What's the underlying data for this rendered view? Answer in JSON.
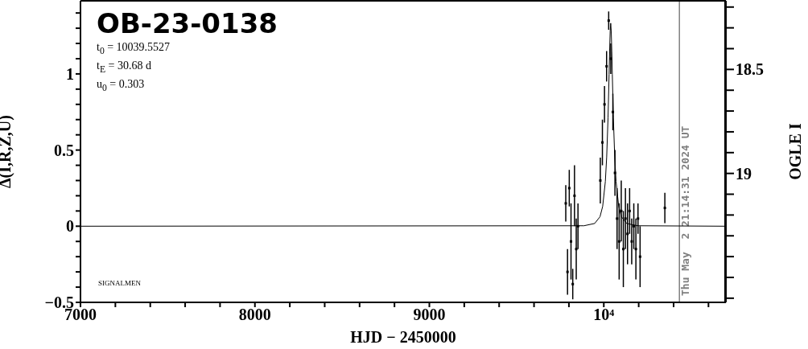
{
  "chart_data": {
    "type": "scatter",
    "xlabel": "HJD − 2450000",
    "ylabel": "Δ(I,R,Z,U)",
    "y2label": "OGLE I",
    "annotations": [
      "OB-23-0138",
      "t$_{0}$ = 10039.5527",
      "t$_{E}$ = 30.68 d",
      "u$_{0}$ = 0.303",
      "SIGNALMEN",
      "Thu May  2 21:14:31 2024 UT"
    ],
    "xlim": [
      7000,
      10700
    ],
    "xticks": [
      7000,
      {
        "value": 7200,
        "label": null
      },
      {
        "value": 7400,
        "label": null
      },
      {
        "value": 7600,
        "label": null
      },
      {
        "value": 7800,
        "label": null
      },
      8000,
      {
        "value": 8200,
        "label": null
      },
      {
        "value": 8400,
        "label": null
      },
      {
        "value": 8600,
        "label": null
      },
      {
        "value": 8800,
        "label": null
      },
      9000,
      {
        "value": 9200,
        "label": null
      },
      {
        "value": 9400,
        "label": null
      },
      {
        "value": 9600,
        "label": null
      },
      {
        "value": 9800,
        "label": null
      },
      {
        "value": 10000,
        "label": "10⁴"
      },
      {
        "value": 10200,
        "label": null
      },
      {
        "value": 10400,
        "label": null
      },
      {
        "value": 10600,
        "label": null
      }
    ],
    "ylim": [
      -0.5,
      1.48
    ],
    "yticks": [
      -0.5,
      {
        "value": -0.4,
        "label": null
      },
      {
        "value": -0.3,
        "label": null
      },
      {
        "value": -0.2,
        "label": null
      },
      {
        "value": -0.1,
        "label": null
      },
      0,
      {
        "value": 0.1,
        "label": null
      },
      {
        "value": 0.2,
        "label": null
      },
      {
        "value": 0.3,
        "label": null
      },
      {
        "value": 0.4,
        "label": null
      },
      0.5,
      {
        "value": 0.6,
        "label": null
      },
      {
        "value": 0.7,
        "label": null
      },
      {
        "value": 0.8,
        "label": null
      },
      {
        "value": 0.9,
        "label": null
      },
      1,
      {
        "value": 1.1,
        "label": null
      },
      {
        "value": 1.2,
        "label": null
      },
      {
        "value": 1.3,
        "label": null
      },
      {
        "value": 1.4,
        "label": null
      }
    ],
    "y2lim": [
      19.62,
      18.17
    ],
    "y2ticks": [
      {
        "value": 18.2,
        "label": null
      },
      {
        "value": 18.3,
        "label": null
      },
      {
        "value": 18.4,
        "label": null
      },
      18.5,
      {
        "value": 18.6,
        "label": null
      },
      {
        "value": 18.7,
        "label": null
      },
      {
        "value": 18.8,
        "label": null
      },
      {
        "value": 18.9,
        "label": null
      },
      19,
      {
        "value": 19.1,
        "label": null
      },
      {
        "value": 19.2,
        "label": null
      },
      {
        "value": 19.3,
        "label": null
      },
      {
        "value": 19.4,
        "label": null
      },
      {
        "value": 19.5,
        "label": null
      },
      {
        "value": 19.6,
        "label": null
      }
    ],
    "ref_lines": [
      {
        "axis": "x",
        "value": 10433.4,
        "color": "#808080"
      }
    ],
    "marker": "square",
    "legend": false,
    "series": [
      {
        "type": "scatter",
        "color": "#000000",
        "x": [
          9782,
          9792,
          9802,
          9812,
          9822,
          9832,
          9842,
          9852,
          9980,
          9992,
          10004,
          10016,
          10028,
          10040,
          10052,
          10064,
          10076,
          10088,
          10100,
          10112,
          10124,
          10136,
          10148,
          10160,
          10172,
          10184,
          10196,
          10208,
          10350
        ],
        "values": [
          0.15,
          -0.3,
          0.25,
          -0.1,
          -0.38,
          0.2,
          -0.15,
          0.0,
          0.3,
          0.55,
          0.8,
          1.05,
          1.35,
          1.1,
          0.75,
          0.35,
          0.05,
          -0.1,
          0.1,
          -0.15,
          0.05,
          -0.05,
          0.1,
          -0.1,
          0.0,
          -0.15,
          0.05,
          -0.2,
          0.12
        ],
        "errors": [
          0.12,
          0.15,
          0.12,
          0.25,
          0.1,
          0.2,
          0.2,
          0.15,
          0.15,
          0.15,
          0.12,
          0.1,
          0.06,
          0.1,
          0.12,
          0.15,
          0.2,
          0.25,
          0.2,
          0.25,
          0.2,
          0.2,
          0.15,
          0.15,
          0.15,
          0.2,
          0.1,
          0.2,
          0.1
        ]
      },
      {
        "type": "line",
        "color": "#000000",
        "marker": "none",
        "x": [
          7000,
          9886.1,
          9947.5,
          9978.2,
          9993.5,
          10008.9,
          10016.5,
          10024.2,
          10030.3,
          10033.4,
          10036.5,
          10039.6,
          10042.6,
          10045.7,
          10048.8,
          10054.9,
          10062.6,
          10070.2,
          10085.6,
          10100.9,
          10131.6,
          10193.0,
          10700
        ],
        "values": [
          0,
          0.003,
          0.018,
          0.062,
          0.13,
          0.294,
          0.455,
          0.71,
          0.996,
          1.152,
          1.28,
          1.333,
          1.28,
          1.152,
          0.996,
          0.71,
          0.455,
          0.294,
          0.13,
          0.062,
          0.018,
          0.003,
          0
        ]
      }
    ]
  }
}
